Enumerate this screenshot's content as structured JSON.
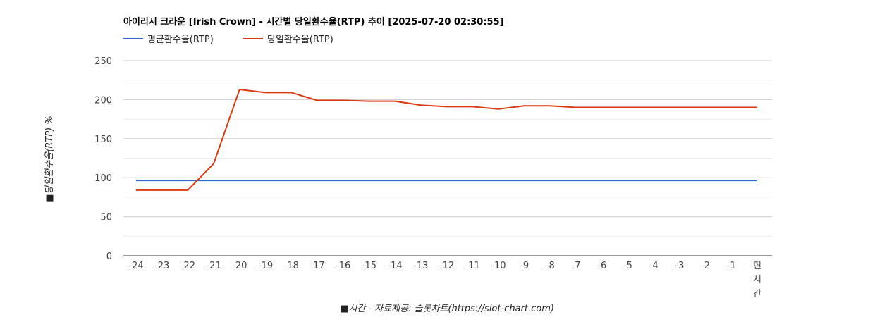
{
  "chart_data": {
    "type": "line",
    "title": "아이리시 크라운 [Irish Crown] - 시간별 당일환수율(RTP) 추이 [2025-07-20 02:30:55]",
    "xlabel": "■시간 - 자료제공: 슬롯차트(https://slot-chart.com)",
    "ylabel": "■당일환수율(RTP) %",
    "categories": [
      "-24",
      "-23",
      "-22",
      "-21",
      "-20",
      "-19",
      "-18",
      "-17",
      "-16",
      "-15",
      "-14",
      "-13",
      "-12",
      "-11",
      "-10",
      "-9",
      "-8",
      "-7",
      "-6",
      "-5",
      "-4",
      "-3",
      "-2",
      "-1",
      "현\n시\n간"
    ],
    "ylim": [
      0,
      250
    ],
    "yticks": [
      0,
      50,
      100,
      150,
      200,
      250
    ],
    "grid": true,
    "legend_position": "top-left",
    "series": [
      {
        "name": "평균환수율(RTP)",
        "color": "#3366cc",
        "values": [
          96.5,
          96.5,
          96.5,
          96.5,
          96.5,
          96.5,
          96.5,
          96.5,
          96.5,
          96.5,
          96.5,
          96.5,
          96.5,
          96.5,
          96.5,
          96.5,
          96.5,
          96.5,
          96.5,
          96.5,
          96.5,
          96.5,
          96.5,
          96.5,
          96.5
        ]
      },
      {
        "name": "당일환수율(RTP)",
        "color": "#dc3912",
        "values": [
          84,
          84,
          84,
          118,
          213,
          209,
          209,
          199,
          199,
          198,
          198,
          193,
          191,
          191,
          188,
          192,
          192,
          190,
          190,
          190,
          190,
          190,
          190,
          190,
          190
        ]
      }
    ]
  }
}
